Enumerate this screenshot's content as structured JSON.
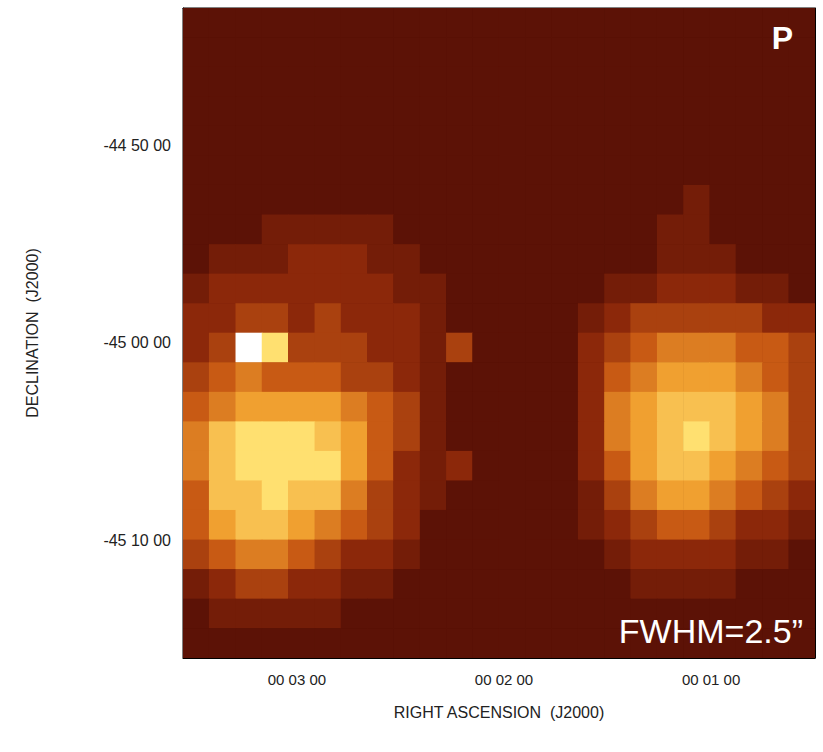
{
  "chart_data": {
    "type": "heatmap",
    "x_label": "RIGHT ASCENSION  (J2000)",
    "y_label": "DECLINATION  (J2000)",
    "annotations": [
      "P",
      "FWHM=2.5”"
    ],
    "xlim": [
      213.0,
      29.9
    ],
    "ylim": [
      -45.2657,
      -44.7175
    ],
    "xticks": [
      {
        "value": 180,
        "label": "00 03 00"
      },
      {
        "value": 120,
        "label": "00 02 00"
      },
      {
        "value": 60,
        "label": "00 01 00"
      }
    ],
    "yticks": [
      {
        "value": -44.8333,
        "label": "-44 50 00"
      },
      {
        "value": -45,
        "label": "-45 00 00"
      },
      {
        "value": -45.1667,
        "label": "-45 10 00"
      }
    ],
    "color_range": [
      0,
      10
    ],
    "x_edges": [
      213.0,
      205.4,
      197.7,
      190.1,
      182.5,
      174.8,
      167.2,
      159.6,
      152.0,
      144.3,
      136.7,
      129.1,
      121.4,
      113.8,
      106.2,
      98.5,
      90.9,
      83.3,
      75.6,
      68.0,
      60.4,
      52.8,
      45.1,
      37.5,
      29.9
    ],
    "y_edges": [
      -44.7175,
      -44.7424,
      -44.7673,
      -44.7923,
      -44.8172,
      -44.8421,
      -44.867,
      -44.8919,
      -44.9169,
      -44.9418,
      -44.9667,
      -44.9916,
      -45.0165,
      -45.0415,
      -45.0664,
      -45.0913,
      -45.1162,
      -45.1411,
      -45.1661,
      -45.191,
      -45.2159,
      -45.2408,
      -45.2657
    ],
    "cells": [
      [
        1,
        1,
        1,
        1,
        1,
        1,
        1,
        1,
        1,
        1,
        1,
        1,
        1,
        1,
        1,
        1,
        1,
        1,
        1,
        1,
        1,
        1,
        1,
        1
      ],
      [
        1,
        1,
        1,
        1,
        1,
        1,
        1,
        1,
        1,
        1,
        1,
        1,
        1,
        1,
        1,
        1,
        1,
        1,
        1,
        1,
        1,
        1,
        1,
        1
      ],
      [
        1,
        1,
        1,
        1,
        1,
        1,
        1,
        1,
        1,
        1,
        1,
        1,
        1,
        1,
        1,
        1,
        1,
        1,
        1,
        1,
        1,
        1,
        1,
        1
      ],
      [
        1,
        1,
        1,
        1,
        1,
        1,
        1,
        1,
        1,
        1,
        1,
        1,
        1,
        1,
        1,
        1,
        1,
        1,
        1,
        1,
        1,
        1,
        1,
        1
      ],
      [
        1,
        1,
        1,
        1,
        1,
        1,
        1,
        1,
        1,
        1,
        1,
        1,
        1,
        1,
        1,
        1,
        1,
        1,
        1,
        1,
        1,
        1,
        1,
        1
      ],
      [
        1,
        1,
        1,
        1,
        1,
        1,
        1,
        1,
        1,
        1,
        1,
        1,
        1,
        1,
        1,
        1,
        1,
        1,
        1,
        1,
        1,
        1,
        1,
        1
      ],
      [
        1,
        1,
        1,
        1,
        1,
        1,
        1,
        1,
        1,
        1,
        1,
        1,
        1,
        1,
        1,
        1,
        1,
        1,
        1,
        2,
        1,
        1,
        1,
        1
      ],
      [
        1,
        1,
        1,
        2,
        2,
        2,
        2,
        2,
        1,
        1,
        1,
        1,
        1,
        1,
        1,
        1,
        1,
        1,
        2,
        2,
        1,
        1,
        1,
        1
      ],
      [
        1,
        2,
        2,
        2,
        3,
        3,
        3,
        2,
        2,
        1,
        1,
        1,
        1,
        1,
        1,
        1,
        1,
        1,
        2,
        2,
        2,
        1,
        1,
        1
      ],
      [
        2,
        3,
        3,
        3,
        3,
        3,
        3,
        3,
        2,
        2,
        1,
        1,
        1,
        1,
        1,
        1,
        2,
        2,
        3,
        3,
        3,
        2,
        2,
        1
      ],
      [
        3,
        3,
        4,
        4,
        3,
        4,
        3,
        3,
        3,
        2,
        1,
        1,
        1,
        1,
        1,
        2,
        3,
        4,
        4,
        4,
        4,
        4,
        3,
        3
      ],
      [
        3,
        4,
        10,
        9,
        4,
        4,
        4,
        3,
        3,
        2,
        4,
        1,
        1,
        1,
        1,
        3,
        4,
        5,
        6,
        6,
        6,
        5,
        5,
        4
      ],
      [
        4,
        5,
        6,
        5,
        5,
        5,
        4,
        4,
        3,
        2,
        1,
        1,
        1,
        1,
        1,
        3,
        5,
        6,
        7,
        7,
        7,
        6,
        5,
        4
      ],
      [
        5,
        6,
        7,
        7,
        7,
        7,
        6,
        5,
        4,
        2,
        1,
        1,
        1,
        1,
        1,
        3,
        6,
        7,
        8,
        8,
        8,
        7,
        6,
        4
      ],
      [
        6,
        8,
        9,
        9,
        9,
        8,
        7,
        5,
        4,
        2,
        1,
        1,
        1,
        1,
        1,
        3,
        6,
        7,
        8,
        9,
        8,
        7,
        6,
        4
      ],
      [
        6,
        8,
        9,
        9,
        9,
        9,
        7,
        5,
        3,
        2,
        3,
        1,
        1,
        1,
        1,
        3,
        5,
        7,
        8,
        8,
        7,
        6,
        5,
        4
      ],
      [
        5,
        8,
        8,
        9,
        8,
        8,
        6,
        4,
        3,
        2,
        1,
        1,
        1,
        1,
        1,
        2,
        4,
        6,
        7,
        7,
        6,
        5,
        4,
        3
      ],
      [
        5,
        7,
        8,
        8,
        7,
        6,
        5,
        4,
        3,
        1,
        1,
        1,
        1,
        1,
        1,
        2,
        3,
        4,
        5,
        5,
        4,
        3,
        3,
        2
      ],
      [
        4,
        5,
        6,
        6,
        5,
        4,
        3,
        3,
        2,
        1,
        1,
        1,
        1,
        1,
        1,
        1,
        2,
        3,
        3,
        3,
        3,
        2,
        2,
        1
      ],
      [
        2,
        3,
        4,
        4,
        3,
        3,
        2,
        2,
        1,
        1,
        1,
        1,
        1,
        1,
        1,
        1,
        1,
        2,
        2,
        2,
        2,
        1,
        1,
        1
      ],
      [
        1,
        2,
        2,
        2,
        2,
        2,
        1,
        1,
        1,
        1,
        1,
        1,
        1,
        1,
        1,
        1,
        1,
        1,
        1,
        1,
        1,
        1,
        1,
        1
      ],
      [
        1,
        1,
        1,
        1,
        1,
        1,
        1,
        1,
        1,
        1,
        1,
        1,
        1,
        1,
        1,
        1,
        1,
        1,
        1,
        1,
        1,
        1,
        1,
        1
      ]
    ]
  }
}
